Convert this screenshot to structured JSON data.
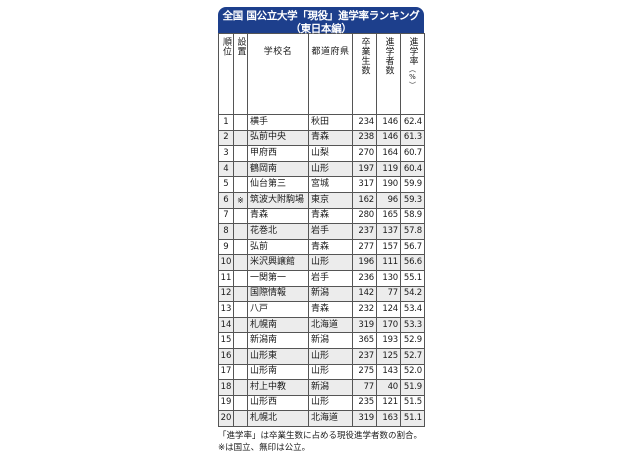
{
  "title": {
    "line1": "全国 国公立大学「現役」進学率ランキング",
    "line2": "（東日本編）"
  },
  "headers": {
    "rank": "順位",
    "type": "設置",
    "name": "学校名",
    "pref": "都道府県",
    "graduates": "卒業生数",
    "advancers": "進学者数",
    "rate": "進学率",
    "rate_unit": "（%）"
  },
  "rows": [
    {
      "rank": "1",
      "type": "",
      "name": "横手",
      "pref": "秋田",
      "graduates": "234",
      "advancers": "146",
      "rate": "62.4"
    },
    {
      "rank": "2",
      "type": "",
      "name": "弘前中央",
      "pref": "青森",
      "graduates": "238",
      "advancers": "146",
      "rate": "61.3"
    },
    {
      "rank": "3",
      "type": "",
      "name": "甲府西",
      "pref": "山梨",
      "graduates": "270",
      "advancers": "164",
      "rate": "60.7"
    },
    {
      "rank": "4",
      "type": "",
      "name": "鶴岡南",
      "pref": "山形",
      "graduates": "197",
      "advancers": "119",
      "rate": "60.4"
    },
    {
      "rank": "5",
      "type": "",
      "name": "仙台第三",
      "pref": "宮城",
      "graduates": "317",
      "advancers": "190",
      "rate": "59.9"
    },
    {
      "rank": "6",
      "type": "※",
      "name": "筑波大附駒場",
      "pref": "東京",
      "graduates": "162",
      "advancers": "96",
      "rate": "59.3"
    },
    {
      "rank": "7",
      "type": "",
      "name": "青森",
      "pref": "青森",
      "graduates": "280",
      "advancers": "165",
      "rate": "58.9"
    },
    {
      "rank": "8",
      "type": "",
      "name": "花巻北",
      "pref": "岩手",
      "graduates": "237",
      "advancers": "137",
      "rate": "57.8"
    },
    {
      "rank": "9",
      "type": "",
      "name": "弘前",
      "pref": "青森",
      "graduates": "277",
      "advancers": "157",
      "rate": "56.7"
    },
    {
      "rank": "10",
      "type": "",
      "name": "米沢興譲館",
      "pref": "山形",
      "graduates": "196",
      "advancers": "111",
      "rate": "56.6"
    },
    {
      "rank": "11",
      "type": "",
      "name": "一関第一",
      "pref": "岩手",
      "graduates": "236",
      "advancers": "130",
      "rate": "55.1"
    },
    {
      "rank": "12",
      "type": "",
      "name": "国際情報",
      "pref": "新潟",
      "graduates": "142",
      "advancers": "77",
      "rate": "54.2"
    },
    {
      "rank": "13",
      "type": "",
      "name": "八戸",
      "pref": "青森",
      "graduates": "232",
      "advancers": "124",
      "rate": "53.4"
    },
    {
      "rank": "14",
      "type": "",
      "name": "札幌南",
      "pref": "北海道",
      "graduates": "319",
      "advancers": "170",
      "rate": "53.3"
    },
    {
      "rank": "15",
      "type": "",
      "name": "新潟南",
      "pref": "新潟",
      "graduates": "365",
      "advancers": "193",
      "rate": "52.9"
    },
    {
      "rank": "16",
      "type": "",
      "name": "山形東",
      "pref": "山形",
      "graduates": "237",
      "advancers": "125",
      "rate": "52.7"
    },
    {
      "rank": "17",
      "type": "",
      "name": "山形南",
      "pref": "山形",
      "graduates": "275",
      "advancers": "143",
      "rate": "52.0"
    },
    {
      "rank": "18",
      "type": "",
      "name": "村上中教",
      "pref": "新潟",
      "graduates": "77",
      "advancers": "40",
      "rate": "51.9"
    },
    {
      "rank": "19",
      "type": "",
      "name": "山形西",
      "pref": "山形",
      "graduates": "235",
      "advancers": "121",
      "rate": "51.5"
    },
    {
      "rank": "20",
      "type": "",
      "name": "札幌北",
      "pref": "北海道",
      "graduates": "319",
      "advancers": "163",
      "rate": "51.1"
    }
  ],
  "notes": [
    "「進学率」は卒業生数に占める現役進学者数の割合。",
    "※は国立、無印は公立。"
  ],
  "colors": {
    "title_bg": "#1d3f8c",
    "title_text": "#ffffff",
    "stripe": "#ececec"
  }
}
